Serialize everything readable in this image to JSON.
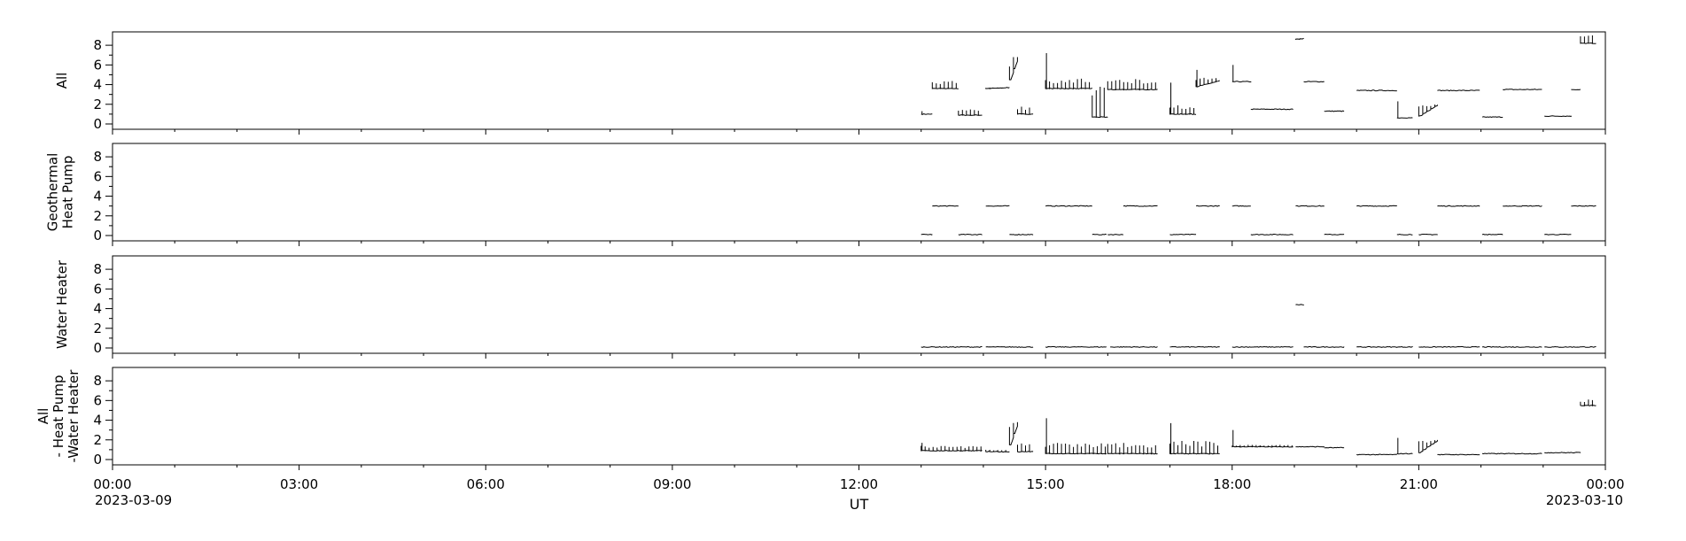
{
  "chart_data": {
    "type": "line",
    "x_axis": {
      "label": "UT",
      "range": [
        "2023-03-09 00:00",
        "2023-03-10 00:00"
      ],
      "range_hours": [
        0,
        24
      ],
      "tick_hours": [
        0,
        3,
        6,
        9,
        12,
        15,
        18,
        21,
        24
      ],
      "tick_labels": [
        "00:00",
        "03:00",
        "06:00",
        "09:00",
        "12:00",
        "15:00",
        "18:00",
        "21:00",
        "00:00"
      ],
      "start_date_label": "2023-03-09",
      "end_date_label": "2023-03-10"
    },
    "panels": [
      {
        "ylabel_lines": [
          "All"
        ],
        "ylim": [
          0,
          9
        ],
        "yticks": [
          0,
          2,
          4,
          6,
          8
        ],
        "segments": [
          {
            "t0": 13.0,
            "t1": 13.18,
            "base": 1.0,
            "high": 1.0,
            "osc": 1.0,
            "spikes": 1.3
          },
          {
            "t0": 13.18,
            "t1": 13.6,
            "base": 3.6,
            "high": 3.6,
            "osc": 4.4,
            "spikes": 0
          },
          {
            "t0": 13.6,
            "t1": 13.98,
            "base": 0.9,
            "high": 0.9,
            "osc": 1.5,
            "spikes": 0
          },
          {
            "t0": 14.04,
            "t1": 14.42,
            "base": 3.6,
            "high": 3.7,
            "osc": 3.7,
            "spikes": 0
          },
          {
            "t0": 14.42,
            "t1": 14.55,
            "base": 4.5,
            "high": 6.8,
            "osc": 6.8,
            "spikes": 0
          },
          {
            "t0": 14.55,
            "t1": 14.8,
            "base": 1.0,
            "high": 1.0,
            "osc": 1.8,
            "spikes": 0
          },
          {
            "t0": 15.0,
            "t1": 15.75,
            "base": 3.6,
            "high": 3.6,
            "osc": 4.6,
            "spikes": 7.2
          },
          {
            "t0": 15.75,
            "t1": 16.0,
            "base": 0.7,
            "high": 0.7,
            "osc": 3.8,
            "spikes": 0
          },
          {
            "t0": 16.0,
            "t1": 16.8,
            "base": 3.5,
            "high": 3.5,
            "osc": 4.6,
            "spikes": 0
          },
          {
            "t0": 17.0,
            "t1": 17.42,
            "base": 1.0,
            "high": 1.0,
            "osc": 1.9,
            "spikes": 4.2
          },
          {
            "t0": 17.42,
            "t1": 17.8,
            "base": 3.8,
            "high": 4.4,
            "osc": 4.7,
            "spikes": 5.5
          },
          {
            "t0": 18.0,
            "t1": 18.3,
            "base": 4.3,
            "high": 4.3,
            "osc": 4.3,
            "spikes": 6.0
          },
          {
            "t0": 18.3,
            "t1": 18.98,
            "base": 1.5,
            "high": 1.5,
            "osc": 1.5,
            "spikes": 0
          },
          {
            "t0": 19.02,
            "t1": 19.15,
            "base": 8.6,
            "high": 8.7,
            "osc": 8.7,
            "spikes": 0
          },
          {
            "t0": 19.15,
            "t1": 19.48,
            "base": 4.3,
            "high": 4.3,
            "osc": 4.3,
            "spikes": 0
          },
          {
            "t0": 19.48,
            "t1": 19.8,
            "base": 1.3,
            "high": 1.3,
            "osc": 1.3,
            "spikes": 0
          },
          {
            "t0": 20.0,
            "t1": 20.65,
            "base": 3.4,
            "high": 3.4,
            "osc": 3.4,
            "spikes": 0
          },
          {
            "t0": 20.65,
            "t1": 20.9,
            "base": 0.6,
            "high": 0.6,
            "osc": 0.6,
            "spikes": 2.3
          },
          {
            "t0": 21.0,
            "t1": 21.3,
            "base": 0.8,
            "high": 2.0,
            "osc": 2.0,
            "spikes": 0
          },
          {
            "t0": 21.3,
            "t1": 21.98,
            "base": 3.4,
            "high": 3.4,
            "osc": 3.4,
            "spikes": 0
          },
          {
            "t0": 22.02,
            "t1": 22.35,
            "base": 0.7,
            "high": 0.7,
            "osc": 0.7,
            "spikes": 0
          },
          {
            "t0": 22.35,
            "t1": 22.98,
            "base": 3.5,
            "high": 3.5,
            "osc": 3.5,
            "spikes": 0
          },
          {
            "t0": 23.02,
            "t1": 23.45,
            "base": 0.8,
            "high": 0.8,
            "osc": 0.8,
            "spikes": 0
          },
          {
            "t0": 23.45,
            "t1": 23.6,
            "base": 3.5,
            "high": 3.5,
            "osc": 3.5,
            "spikes": 0
          },
          {
            "t0": 23.6,
            "t1": 23.85,
            "base": 8.2,
            "high": 8.2,
            "osc": 9.0,
            "spikes": 0
          }
        ]
      },
      {
        "ylabel_lines": [
          "Geothermal",
          "Heat Pump"
        ],
        "ylim": [
          0,
          9
        ],
        "yticks": [
          0,
          2,
          4,
          6,
          8
        ],
        "segments": [
          {
            "t0": 13.0,
            "t1": 13.18,
            "base": 0.1,
            "high": 0.1,
            "osc": 0.1,
            "spikes": 0
          },
          {
            "t0": 13.18,
            "t1": 13.6,
            "base": 3.0,
            "high": 3.0,
            "osc": 3.0,
            "spikes": 0
          },
          {
            "t0": 13.6,
            "t1": 13.98,
            "base": 0.1,
            "high": 0.1,
            "osc": 0.1,
            "spikes": 0
          },
          {
            "t0": 14.04,
            "t1": 14.42,
            "base": 3.0,
            "high": 3.0,
            "osc": 3.0,
            "spikes": 0
          },
          {
            "t0": 14.42,
            "t1": 14.8,
            "base": 0.1,
            "high": 0.1,
            "osc": 0.1,
            "spikes": 0
          },
          {
            "t0": 15.0,
            "t1": 15.75,
            "base": 3.0,
            "high": 3.0,
            "osc": 3.0,
            "spikes": 0
          },
          {
            "t0": 15.75,
            "t1": 15.98,
            "base": 0.1,
            "high": 0.1,
            "osc": 0.1,
            "spikes": 0
          },
          {
            "t0": 16.0,
            "t1": 16.25,
            "base": 0.1,
            "high": 0.1,
            "osc": 0.1,
            "spikes": 0
          },
          {
            "t0": 16.25,
            "t1": 16.8,
            "base": 3.0,
            "high": 3.0,
            "osc": 3.0,
            "spikes": 0
          },
          {
            "t0": 17.0,
            "t1": 17.42,
            "base": 0.1,
            "high": 0.1,
            "osc": 0.1,
            "spikes": 0
          },
          {
            "t0": 17.42,
            "t1": 17.8,
            "base": 3.0,
            "high": 3.0,
            "osc": 3.0,
            "spikes": 0
          },
          {
            "t0": 18.0,
            "t1": 18.3,
            "base": 3.0,
            "high": 3.0,
            "osc": 3.0,
            "spikes": 0
          },
          {
            "t0": 18.3,
            "t1": 18.98,
            "base": 0.1,
            "high": 0.1,
            "osc": 0.1,
            "spikes": 0
          },
          {
            "t0": 19.02,
            "t1": 19.48,
            "base": 3.0,
            "high": 3.0,
            "osc": 3.0,
            "spikes": 0
          },
          {
            "t0": 19.48,
            "t1": 19.8,
            "base": 0.1,
            "high": 0.1,
            "osc": 0.1,
            "spikes": 0
          },
          {
            "t0": 20.0,
            "t1": 20.65,
            "base": 3.0,
            "high": 3.0,
            "osc": 3.0,
            "spikes": 0
          },
          {
            "t0": 20.65,
            "t1": 20.9,
            "base": 0.1,
            "high": 0.1,
            "osc": 0.1,
            "spikes": 0
          },
          {
            "t0": 21.0,
            "t1": 21.3,
            "base": 0.1,
            "high": 0.1,
            "osc": 0.1,
            "spikes": 0
          },
          {
            "t0": 21.3,
            "t1": 21.98,
            "base": 3.0,
            "high": 3.0,
            "osc": 3.0,
            "spikes": 0
          },
          {
            "t0": 22.02,
            "t1": 22.35,
            "base": 0.1,
            "high": 0.1,
            "osc": 0.1,
            "spikes": 0
          },
          {
            "t0": 22.35,
            "t1": 22.98,
            "base": 3.0,
            "high": 3.0,
            "osc": 3.0,
            "spikes": 0
          },
          {
            "t0": 23.02,
            "t1": 23.45,
            "base": 0.1,
            "high": 0.1,
            "osc": 0.1,
            "spikes": 0
          },
          {
            "t0": 23.45,
            "t1": 23.85,
            "base": 3.0,
            "high": 3.0,
            "osc": 3.0,
            "spikes": 0
          }
        ]
      },
      {
        "ylabel_lines": [
          "Water Heater"
        ],
        "ylim": [
          0,
          9
        ],
        "yticks": [
          0,
          2,
          4,
          6,
          8
        ],
        "segments": [
          {
            "t0": 13.0,
            "t1": 13.98,
            "base": 0.1,
            "high": 0.1,
            "osc": 0.1,
            "spikes": 0
          },
          {
            "t0": 14.04,
            "t1": 14.8,
            "base": 0.1,
            "high": 0.1,
            "osc": 0.1,
            "spikes": 0
          },
          {
            "t0": 15.0,
            "t1": 15.98,
            "base": 0.1,
            "high": 0.1,
            "osc": 0.1,
            "spikes": 0
          },
          {
            "t0": 16.04,
            "t1": 16.8,
            "base": 0.1,
            "high": 0.1,
            "osc": 0.1,
            "spikes": 0
          },
          {
            "t0": 17.0,
            "t1": 17.8,
            "base": 0.1,
            "high": 0.1,
            "osc": 0.1,
            "spikes": 0
          },
          {
            "t0": 18.0,
            "t1": 18.98,
            "base": 0.1,
            "high": 0.1,
            "osc": 0.1,
            "spikes": 0
          },
          {
            "t0": 19.02,
            "t1": 19.15,
            "base": 4.4,
            "high": 4.4,
            "osc": 4.4,
            "spikes": 0
          },
          {
            "t0": 19.15,
            "t1": 19.8,
            "base": 0.1,
            "high": 0.1,
            "osc": 0.1,
            "spikes": 0
          },
          {
            "t0": 20.0,
            "t1": 20.9,
            "base": 0.1,
            "high": 0.1,
            "osc": 0.1,
            "spikes": 0
          },
          {
            "t0": 21.0,
            "t1": 21.98,
            "base": 0.1,
            "high": 0.1,
            "osc": 0.1,
            "spikes": 0
          },
          {
            "t0": 22.02,
            "t1": 22.98,
            "base": 0.1,
            "high": 0.1,
            "osc": 0.1,
            "spikes": 0
          },
          {
            "t0": 23.02,
            "t1": 23.85,
            "base": 0.1,
            "high": 0.1,
            "osc": 0.1,
            "spikes": 0
          }
        ]
      },
      {
        "ylabel_lines": [
          "All",
          "- Heat Pump",
          "-Water Heater"
        ],
        "ylim": [
          0,
          9
        ],
        "yticks": [
          0,
          2,
          4,
          6,
          8
        ],
        "segments": [
          {
            "t0": 13.0,
            "t1": 13.98,
            "base": 0.9,
            "high": 0.9,
            "osc": 1.4,
            "spikes": 1.7
          },
          {
            "t0": 14.04,
            "t1": 14.42,
            "base": 0.8,
            "high": 0.8,
            "osc": 1.0,
            "spikes": 0
          },
          {
            "t0": 14.42,
            "t1": 14.55,
            "base": 1.5,
            "high": 3.8,
            "osc": 3.8,
            "spikes": 0
          },
          {
            "t0": 14.55,
            "t1": 14.8,
            "base": 0.8,
            "high": 0.8,
            "osc": 1.8,
            "spikes": 0
          },
          {
            "t0": 15.0,
            "t1": 15.98,
            "base": 0.6,
            "high": 0.6,
            "osc": 1.7,
            "spikes": 4.2
          },
          {
            "t0": 16.0,
            "t1": 16.8,
            "base": 0.6,
            "high": 0.6,
            "osc": 1.7,
            "spikes": 0
          },
          {
            "t0": 17.0,
            "t1": 17.8,
            "base": 0.6,
            "high": 0.6,
            "osc": 1.9,
            "spikes": 3.7
          },
          {
            "t0": 18.0,
            "t1": 18.98,
            "base": 1.3,
            "high": 1.3,
            "osc": 1.5,
            "spikes": 3.0
          },
          {
            "t0": 19.02,
            "t1": 19.48,
            "base": 1.3,
            "high": 1.3,
            "osc": 1.3,
            "spikes": 0
          },
          {
            "t0": 19.48,
            "t1": 19.8,
            "base": 1.2,
            "high": 1.2,
            "osc": 1.2,
            "spikes": 0
          },
          {
            "t0": 20.0,
            "t1": 20.65,
            "base": 0.5,
            "high": 0.5,
            "osc": 0.5,
            "spikes": 0
          },
          {
            "t0": 20.65,
            "t1": 20.9,
            "base": 0.6,
            "high": 0.6,
            "osc": 0.6,
            "spikes": 2.2
          },
          {
            "t0": 21.0,
            "t1": 21.3,
            "base": 0.7,
            "high": 2.0,
            "osc": 2.0,
            "spikes": 0
          },
          {
            "t0": 21.3,
            "t1": 21.98,
            "base": 0.5,
            "high": 0.5,
            "osc": 0.5,
            "spikes": 0
          },
          {
            "t0": 22.02,
            "t1": 22.98,
            "base": 0.6,
            "high": 0.6,
            "osc": 0.6,
            "spikes": 0
          },
          {
            "t0": 23.02,
            "t1": 23.6,
            "base": 0.7,
            "high": 0.7,
            "osc": 0.7,
            "spikes": 0
          },
          {
            "t0": 23.6,
            "t1": 23.85,
            "base": 5.5,
            "high": 5.5,
            "osc": 6.1,
            "spikes": 0
          }
        ]
      }
    ],
    "grid": false,
    "legend": "none"
  }
}
